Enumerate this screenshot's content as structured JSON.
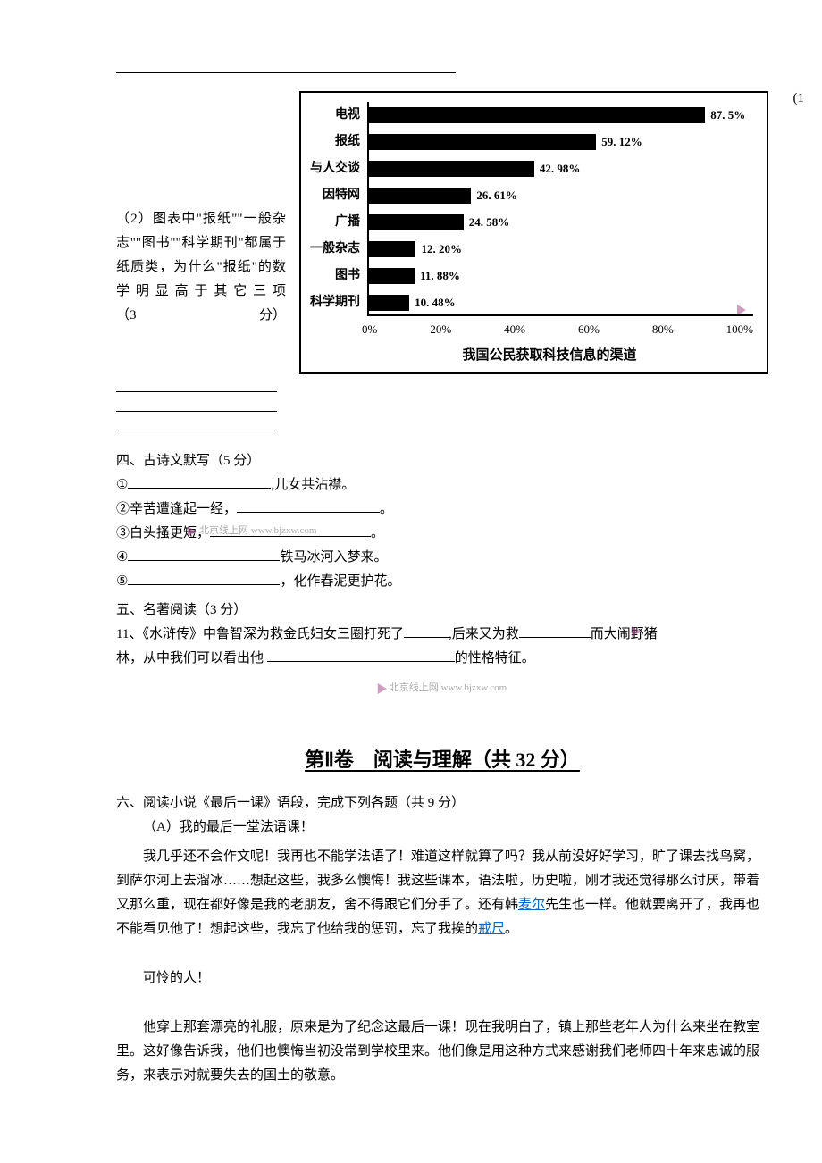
{
  "top_blank_width": 380,
  "paren_marker": "(1",
  "question2": {
    "text1": "（2）图表中\"报纸\"\"一般杂志\"\"图书\"\"科学期刊\"都属于纸质类，为什么\"报纸\"的数学明显高于其它三项",
    "score_open": "（3",
    "score_close": "分）"
  },
  "chart": {
    "type": "horizontal_bar",
    "title": "我国公民获取科技信息的渠道",
    "background_color": "#ffffff",
    "bar_color": "#000000",
    "axis_color": "#000000",
    "label_fontsize": 14,
    "value_fontsize": 13,
    "xmax": 100,
    "xticks": [
      "0%",
      "20%",
      "40%",
      "60%",
      "80%",
      "100%"
    ],
    "rows": [
      {
        "label": "电视",
        "value": 87.5,
        "display": "87. 5%"
      },
      {
        "label": "报纸",
        "value": 59.12,
        "display": "59. 12%"
      },
      {
        "label": "与人交谈",
        "value": 42.98,
        "display": "42. 98%"
      },
      {
        "label": "因特网",
        "value": 26.61,
        "display": "26. 61%"
      },
      {
        "label": "广播",
        "value": 24.58,
        "display": "24. 58%"
      },
      {
        "label": "一般杂志",
        "value": 12.2,
        "display": "12. 20%"
      },
      {
        "label": "图书",
        "value": 11.88,
        "display": "11. 88%"
      },
      {
        "label": "科学期刊",
        "value": 10.48,
        "display": "10. 48%"
      }
    ]
  },
  "section4": {
    "heading": "四、古诗文默写（5 分）",
    "items": [
      {
        "num": "①",
        "pre": "",
        "blank_w": 160,
        "post": ",儿女共沾襟。"
      },
      {
        "num": "②",
        "pre": "辛苦遭逢起一经，",
        "blank_w": 160,
        "post": "。"
      },
      {
        "num": "③",
        "pre": "白头搔更短，",
        "blank_w": 180,
        "post": "。"
      },
      {
        "num": "④",
        "pre": "",
        "blank_w": 170,
        "post": "铁马冰河入梦来。"
      },
      {
        "num": "⑤",
        "pre": "",
        "blank_w": 170,
        "post": "，化作春泥更护花。"
      }
    ]
  },
  "section5": {
    "heading": "五、名著阅读（3 分）",
    "q11_pre": "11、《水浒传》中鲁智深为救金氏妇女三圈打死了",
    "q11_mid": ",后来又为救",
    "q11_mid2": "而大闹野猪",
    "q11_line2_pre": "林，从中我们可以看出他 ",
    "q11_line2_post": "的性格特征。"
  },
  "part2_title": "第Ⅱ卷　阅读与理解（共 32 分）",
  "section6": {
    "heading": "六、阅读小说《最后一课》语段，完成下列各题（共 9 分）",
    "sub_a": "（A）我的最后一堂法语课！",
    "p1_a": "我几乎还不会作文呢！我再也不能学法语了！难道这样就算了吗？我从前没好好学习，旷了课去找鸟窝，到萨尔河上去溜冰……想起这些，我多么懊悔！我这些课本，语法啦，历史啦，刚才我还觉得那么讨厌，带着又那么重，现在都好像是我的老朋友，舍不得跟它们分手了。还有韩",
    "link1": "麦尔",
    "p1_b": "先生也一样。他就要离开了，我再也不能看见他了！想起这些，我忘了他给我的惩罚，忘了我挨的",
    "link2": "戒尺",
    "p1_c": "。",
    "p2": "可怜的人！",
    "p3": "他穿上那套漂亮的礼服，原来是为了纪念这最后一课！现在我明白了，镇上那些老年人为什么来坐在教室里。这好像告诉我，他们也懊悔当初没常到学校里来。他们像是用这种方式来感谢我们老师四十年来忠诚的服务，来表示对就要失去的国土的敬意。"
  },
  "watermarks": {
    "text": "北京线上网 www.bjzxw.com"
  }
}
